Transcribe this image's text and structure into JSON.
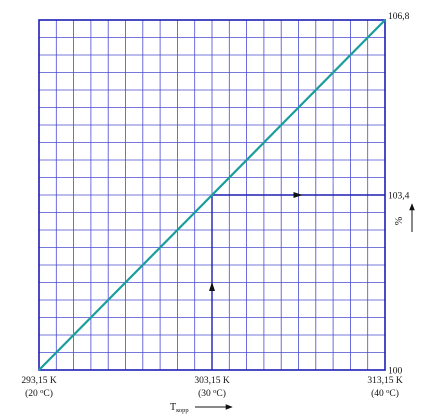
{
  "chart_data": {
    "type": "line",
    "title": "",
    "xlabel": {
      "text": "T",
      "sub": "корр"
    },
    "ylabel": "%",
    "xlim": [
      293.15,
      313.15
    ],
    "ylim": [
      100,
      106.8
    ],
    "grid": true,
    "grid_columns": 20,
    "grid_rows": 20,
    "colors": {
      "grid": "#4a4ad0",
      "frame": "#1e1eb4",
      "series": "#1a9d9d",
      "guide": "#1e1eb4"
    },
    "x_ticks": [
      {
        "value": 293.15,
        "kelvin": "293,15 K",
        "celsius": "20",
        "unit": "C"
      },
      {
        "value": 303.15,
        "kelvin": "303,15 K",
        "celsius": "30",
        "unit": "C"
      },
      {
        "value": 313.15,
        "kelvin": "313,15 K",
        "celsius": "40",
        "unit": "C"
      }
    ],
    "y_ticks": [
      {
        "value": 100,
        "label": "100"
      },
      {
        "value": 103.4,
        "label": "103,4"
      },
      {
        "value": 106.8,
        "label": "106,8"
      }
    ],
    "series": [
      {
        "x": [
          293.15,
          313.15
        ],
        "y": [
          100,
          106.8
        ]
      }
    ],
    "guide": {
      "x": 303.15,
      "y": 103.4
    }
  }
}
